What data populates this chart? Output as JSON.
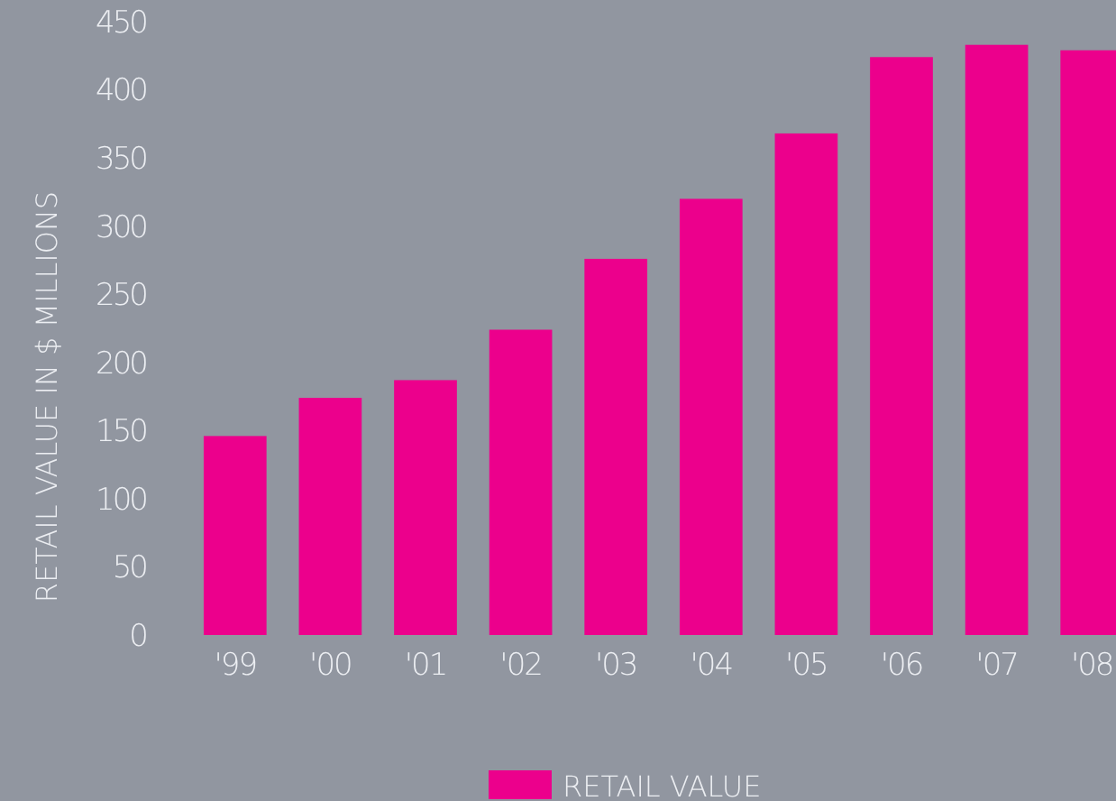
{
  "chart_data": {
    "type": "bar",
    "ylabel": "RETAIL VALUE IN $ MILLIONS",
    "categories": [
      "'99",
      "'00",
      "'01",
      "'02",
      "'03",
      "'04",
      "'05",
      "'06",
      "'07",
      "'08"
    ],
    "series": [
      {
        "name": "RETAIL VALUE",
        "color": "#ec008c",
        "values": [
          146,
          174,
          187,
          224,
          276,
          320,
          368,
          424,
          433,
          429
        ]
      }
    ],
    "ylim": [
      0,
      450
    ],
    "yticks": [
      0,
      50,
      100,
      150,
      200,
      250,
      300,
      350,
      400,
      450
    ],
    "grid": false,
    "legend": "bottom"
  }
}
